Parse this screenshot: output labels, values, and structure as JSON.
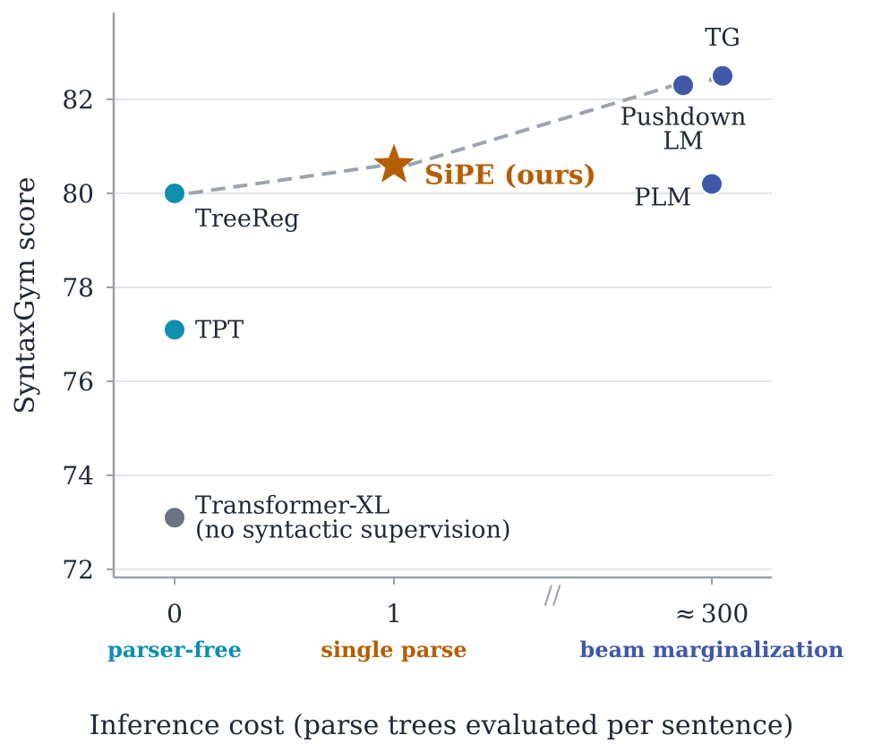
{
  "chart_data": {
    "type": "scatter",
    "xlabel": "Inference cost (parse trees evaluated per sentence)",
    "ylabel": "SyntaxGym score",
    "ylim": [
      71.8,
      84.0
    ],
    "yticks": [
      72,
      74,
      76,
      78,
      80,
      82
    ],
    "grid": "horizontal",
    "x_ticks": [
      {
        "value": "0",
        "label": "0",
        "category": "parser-free",
        "category_color": "#0e8fb0"
      },
      {
        "value": "1",
        "label": "1",
        "category": "single parse",
        "category_color": "#b45f06"
      },
      {
        "value": "300",
        "label": "≈ 300",
        "category": "beam marginalization",
        "category_color": "#3f58a8"
      }
    ],
    "axis_break_mark": "//",
    "points": [
      {
        "label": "TreeReg",
        "x": "0",
        "y": 80.0,
        "color": "#0e8fb0",
        "marker": "circle"
      },
      {
        "label": "TPT",
        "x": "0",
        "y": 77.1,
        "color": "#0e8fb0",
        "marker": "circle"
      },
      {
        "label": "Transformer-XL\n(no syntactic supervision)",
        "x": "0",
        "y": 73.1,
        "color": "#6b7280",
        "marker": "circle"
      },
      {
        "label": "SiPE (ours)",
        "x": "1",
        "y": 80.6,
        "color": "#b45f06",
        "marker": "star",
        "bold": true
      },
      {
        "label": "Pushdown\nLM",
        "x": "300",
        "y": 82.3,
        "color": "#3f58a8",
        "marker": "circle"
      },
      {
        "label": "TG",
        "x": "300",
        "y": 82.5,
        "color": "#3f58a8",
        "marker": "circle"
      },
      {
        "label": "PLM",
        "x": "300",
        "y": 80.2,
        "color": "#3f58a8",
        "marker": "circle"
      }
    ],
    "frontier_line": [
      "TreeReg",
      "SiPE (ours)",
      "Pushdown\nLM",
      "TG"
    ]
  },
  "colors": {
    "axis": "#9aa0a6",
    "grid": "#e3e5e8",
    "text": "#1f2937",
    "frontier": "#9ca3af"
  }
}
